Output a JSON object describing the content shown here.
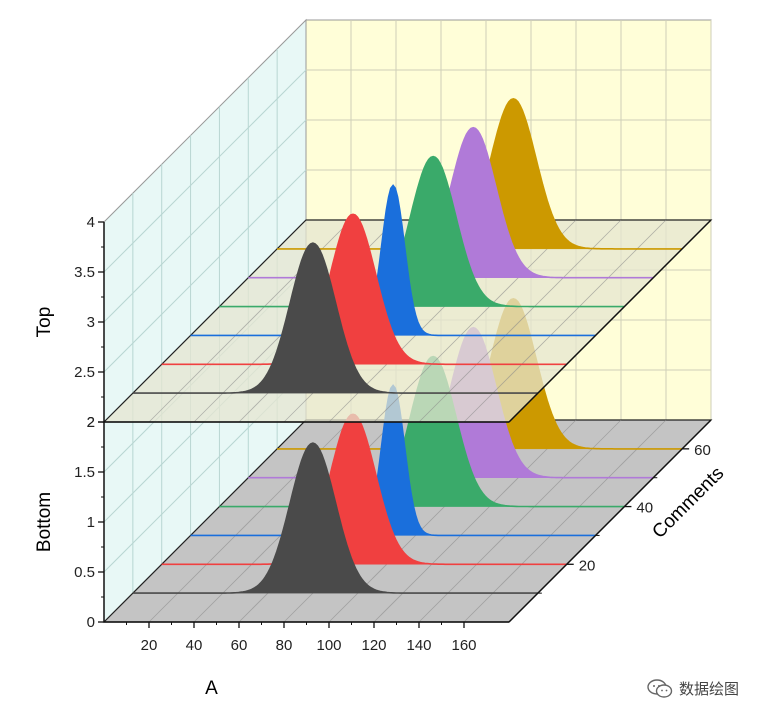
{
  "chart_data": {
    "type": "area",
    "subtype": "3d-stacked-waterfall",
    "title": "",
    "xlabel": "A",
    "zlabel": "Comments",
    "panels": [
      {
        "name": "Top",
        "ylim": [
          2,
          4
        ],
        "yticks": [
          "2",
          "2.5",
          "3",
          "3.5",
          "4"
        ],
        "baseline": 2,
        "amplitude": 1.5,
        "floor_color": "#e6e6d0"
      },
      {
        "name": "Bottom",
        "ylim": [
          0,
          2
        ],
        "yticks": [
          "0",
          "0.5",
          "1",
          "1.5",
          "2"
        ],
        "baseline": 0,
        "amplitude": 1.5,
        "floor_color": "#c4c4c4"
      }
    ],
    "xlim": [
      0,
      180
    ],
    "xticks": [
      "20",
      "40",
      "60",
      "80",
      "100",
      "120",
      "140",
      "160"
    ],
    "zlim": [
      0,
      70
    ],
    "zticks": [
      "20",
      "40",
      "60"
    ],
    "series": [
      {
        "comments": 10,
        "center": 80,
        "sigma": 10,
        "color": "#4a4a4a"
      },
      {
        "comments": 20,
        "center": 85,
        "sigma": 10,
        "color": "#f04040"
      },
      {
        "comments": 30,
        "center": 90,
        "sigma": 5,
        "color": "#1a6fdc"
      },
      {
        "comments": 40,
        "center": 95,
        "sigma": 10,
        "color": "#3aaa6a"
      },
      {
        "comments": 50,
        "center": 100,
        "sigma": 10,
        "color": "#b07ad8"
      },
      {
        "comments": 60,
        "center": 105,
        "sigma": 10,
        "color": "#cc9900"
      }
    ],
    "back_wall_color": "#fffed8",
    "side_wall_color": "#e8f8f6",
    "grid": true
  },
  "watermark": {
    "text": "数据绘图",
    "icon": "wechat-icon"
  }
}
